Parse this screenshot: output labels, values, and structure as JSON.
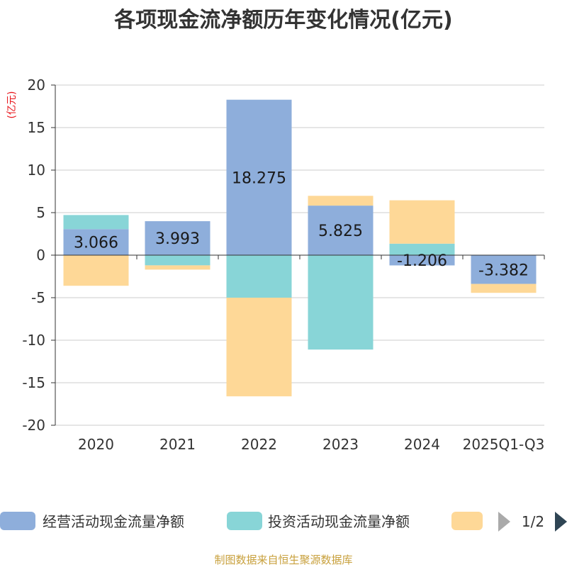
{
  "chart_data": {
    "type": "bar",
    "stacked": true,
    "title": "各项现金流净额历年变化情况(亿元)",
    "ylabel": "(亿元)",
    "ylim": [
      -20,
      20
    ],
    "yticks": [
      20,
      15,
      10,
      5,
      0,
      -5,
      -10,
      -15,
      -20
    ],
    "ytick_labels": [
      "20",
      "15",
      "10",
      "5",
      "0",
      "-5",
      "-10",
      "-15",
      "-20"
    ],
    "categories": [
      "2020",
      "2021",
      "2022",
      "2023",
      "2024",
      "2025Q1-Q3"
    ],
    "series": [
      {
        "name": "经营活动现金流量净额",
        "color": "#8eaedb",
        "values": [
          3.066,
          3.993,
          18.275,
          5.825,
          -1.206,
          -3.382
        ],
        "labels": [
          "3.066",
          "3.993",
          "18.275",
          "5.825",
          "-1.206",
          "-3.382"
        ]
      },
      {
        "name": "投资活动现金流量净额",
        "color": "#88d5d7",
        "values": [
          1.65,
          -1.2,
          -5.0,
          -11.1,
          1.35,
          0.0
        ]
      },
      {
        "name": "",
        "color": "#fed897",
        "values": [
          -3.6,
          -0.5,
          -11.6,
          1.15,
          5.1,
          -1.05
        ]
      }
    ],
    "legend": {
      "position": "bottom",
      "page": "1/2"
    },
    "source": "制图数据来自恒生聚源数据库"
  }
}
